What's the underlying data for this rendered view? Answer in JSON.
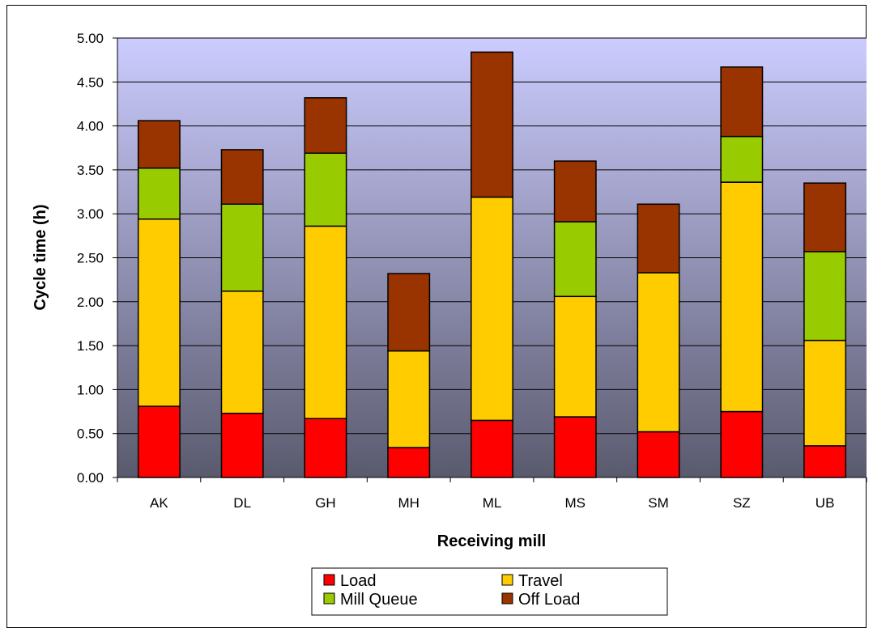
{
  "chart_data": {
    "type": "bar",
    "stacked": true,
    "title": "",
    "xlabel": "Receiving mill",
    "ylabel": "Cycle time (h)",
    "ylim": [
      0,
      5
    ],
    "ytick_step": 0.5,
    "ytick_labels": [
      "0.00",
      "0.50",
      "1.00",
      "1.50",
      "2.00",
      "2.50",
      "3.00",
      "3.50",
      "4.00",
      "4.50",
      "5.00"
    ],
    "grid": true,
    "legend_position": "bottom",
    "categories": [
      "AK",
      "DL",
      "GH",
      "MH",
      "ML",
      "MS",
      "SM",
      "SZ",
      "UB"
    ],
    "series": [
      {
        "name": "Load",
        "color": "#FF0000",
        "values": [
          0.81,
          0.73,
          0.67,
          0.34,
          0.65,
          0.69,
          0.52,
          0.75,
          0.36
        ]
      },
      {
        "name": "Travel",
        "color": "#FFCC00",
        "values": [
          2.13,
          1.39,
          2.19,
          1.1,
          2.54,
          1.37,
          1.81,
          2.61,
          1.2
        ]
      },
      {
        "name": "Mill Queue",
        "color": "#99CC00",
        "values": [
          0.58,
          0.99,
          0.83,
          0.0,
          0.0,
          0.85,
          0.0,
          0.52,
          1.01
        ]
      },
      {
        "name": "Off Load",
        "color": "#993300",
        "values": [
          0.54,
          0.62,
          0.63,
          0.88,
          1.65,
          0.69,
          0.78,
          0.79,
          0.78
        ]
      }
    ],
    "legend_order": [
      "Load",
      "Travel",
      "Mill Queue",
      "Off Load"
    ]
  }
}
